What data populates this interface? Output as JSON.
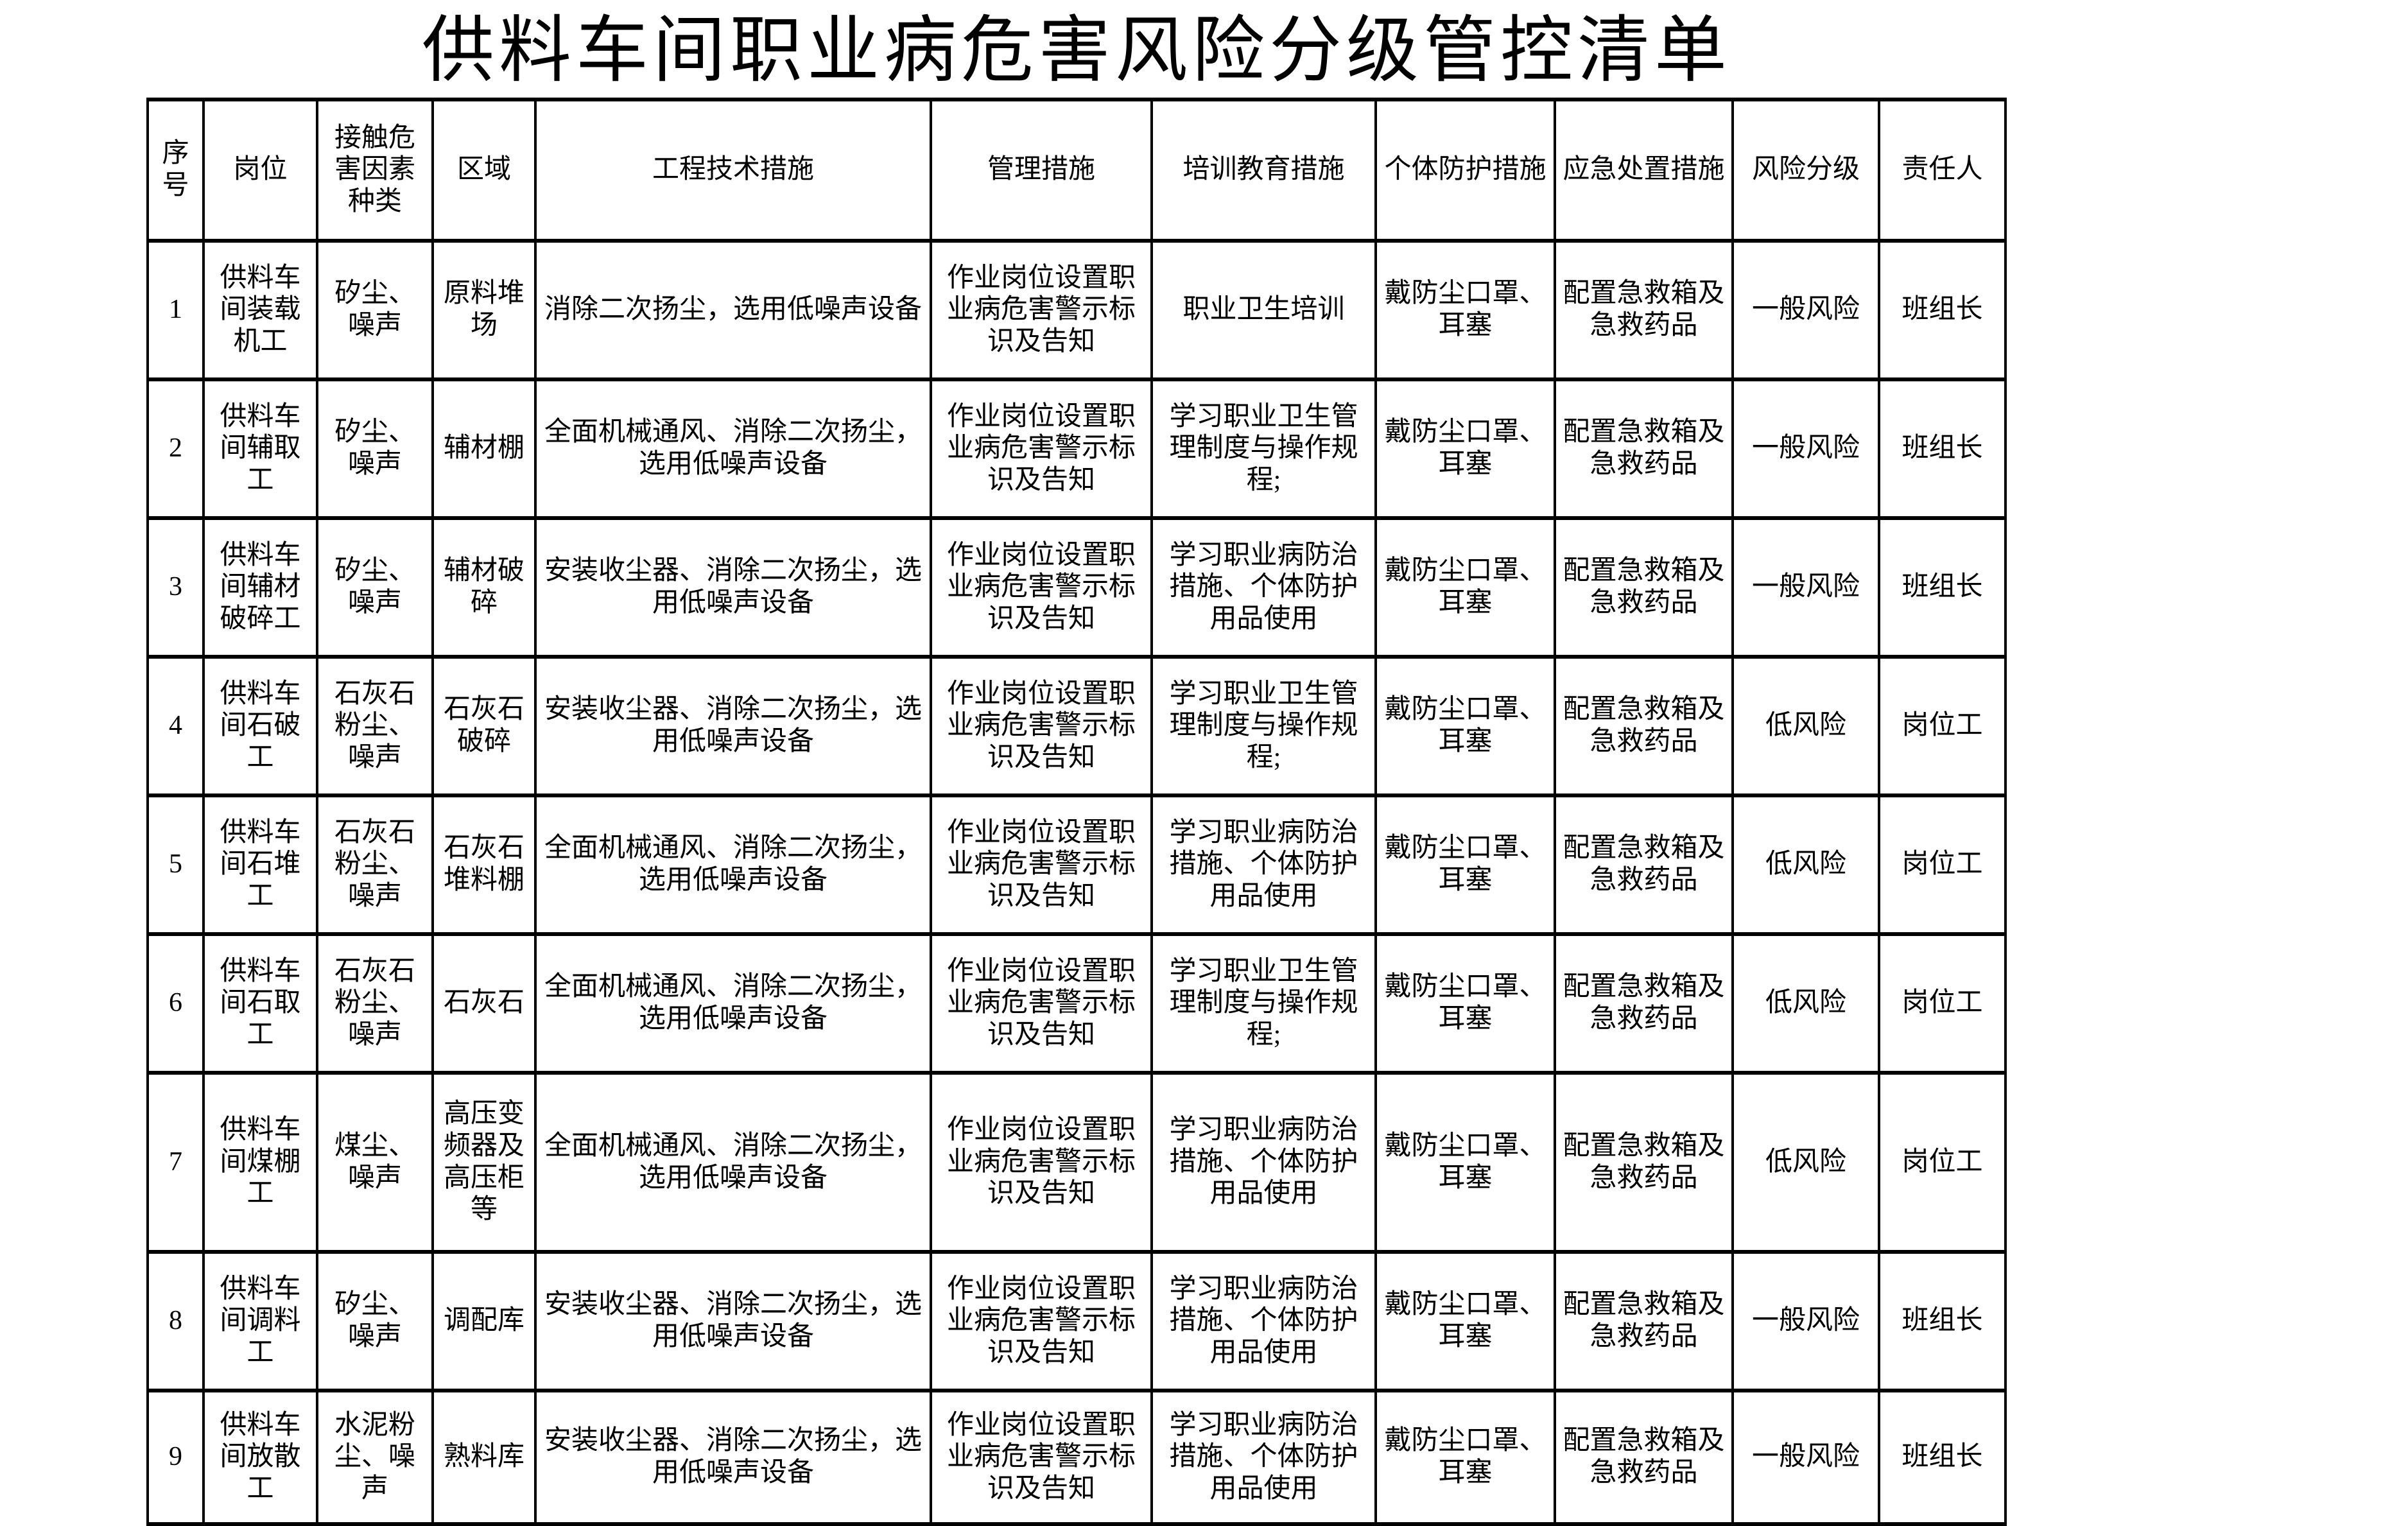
{
  "title": "供料车间职业病危害风险分级管控清单",
  "table": {
    "columns": [
      {
        "key": "no",
        "label": "序号"
      },
      {
        "key": "position",
        "label": "岗位"
      },
      {
        "key": "hazards",
        "label": "接触危害因素种类"
      },
      {
        "key": "area",
        "label": "区域"
      },
      {
        "key": "engineering",
        "label": "工程技术措施"
      },
      {
        "key": "management",
        "label": "管理措施"
      },
      {
        "key": "training",
        "label": "培训教育措施"
      },
      {
        "key": "ppe",
        "label": "个体防护措施"
      },
      {
        "key": "emergency",
        "label": "应急处置措施"
      },
      {
        "key": "risk",
        "label": "风险分级"
      },
      {
        "key": "responsible",
        "label": "责任人"
      }
    ],
    "rows": [
      {
        "no": "1",
        "position": "供料车间装载机工",
        "hazards": "矽尘、噪声",
        "area": "原料堆场",
        "engineering": "消除二次扬尘，选用低噪声设备",
        "management": "作业岗位设置职业病危害警示标识及告知",
        "training": "职业卫生培训",
        "ppe": "戴防尘口罩、耳塞",
        "emergency": "配置急救箱及急救药品",
        "risk": "一般风险",
        "responsible": "班组长"
      },
      {
        "no": "2",
        "position": "供料车间辅取工",
        "hazards": "矽尘、噪声",
        "area": "辅材棚",
        "engineering": "全面机械通风、消除二次扬尘，选用低噪声设备",
        "management": "作业岗位设置职业病危害警示标识及告知",
        "training": "学习职业卫生管理制度与操作规程;",
        "ppe": "戴防尘口罩、耳塞",
        "emergency": "配置急救箱及急救药品",
        "risk": "一般风险",
        "responsible": "班组长"
      },
      {
        "no": "3",
        "position": "供料车间辅材破碎工",
        "hazards": "矽尘、噪声",
        "area": "辅材破碎",
        "engineering": "安装收尘器、消除二次扬尘，选用低噪声设备",
        "management": "作业岗位设置职业病危害警示标识及告知",
        "training": "学习职业病防治措施、个体防护用品使用",
        "ppe": "戴防尘口罩、耳塞",
        "emergency": "配置急救箱及急救药品",
        "risk": "一般风险",
        "responsible": "班组长"
      },
      {
        "no": "4",
        "position": "供料车间石破工",
        "hazards": "石灰石粉尘、噪声",
        "area": "石灰石破碎",
        "engineering": "安装收尘器、消除二次扬尘，选用低噪声设备",
        "management": "作业岗位设置职业病危害警示标识及告知",
        "training": "学习职业卫生管理制度与操作规程;",
        "ppe": "戴防尘口罩、耳塞",
        "emergency": "配置急救箱及急救药品",
        "risk": "低风险",
        "responsible": "岗位工"
      },
      {
        "no": "5",
        "position": "供料车间石堆工",
        "hazards": "石灰石粉尘、噪声",
        "area": "石灰石堆料棚",
        "engineering": "全面机械通风、消除二次扬尘，选用低噪声设备",
        "management": "作业岗位设置职业病危害警示标识及告知",
        "training": "学习职业病防治措施、个体防护用品使用",
        "ppe": "戴防尘口罩、耳塞",
        "emergency": "配置急救箱及急救药品",
        "risk": "低风险",
        "responsible": "岗位工"
      },
      {
        "no": "6",
        "position": "供料车间石取工",
        "hazards": "石灰石粉尘、噪声",
        "area": "石灰石",
        "engineering": "全面机械通风、消除二次扬尘，选用低噪声设备",
        "management": "作业岗位设置职业病危害警示标识及告知",
        "training": "学习职业卫生管理制度与操作规程;",
        "ppe": "戴防尘口罩、耳塞",
        "emergency": "配置急救箱及急救药品",
        "risk": "低风险",
        "responsible": "岗位工"
      },
      {
        "no": "7",
        "position": "供料车间煤棚工",
        "hazards": "煤尘、噪声",
        "area": "高压变频器及高压柜等",
        "engineering": "全面机械通风、消除二次扬尘，选用低噪声设备",
        "management": "作业岗位设置职业病危害警示标识及告知",
        "training": "学习职业病防治措施、个体防护用品使用",
        "ppe": "戴防尘口罩、耳塞",
        "emergency": "配置急救箱及急救药品",
        "risk": "低风险",
        "responsible": "岗位工"
      },
      {
        "no": "8",
        "position": "供料车间调料工",
        "hazards": "矽尘、噪声",
        "area": "调配库",
        "engineering": "安装收尘器、消除二次扬尘，选用低噪声设备",
        "management": "作业岗位设置职业病危害警示标识及告知",
        "training": "学习职业病防治措施、个体防护用品使用",
        "ppe": "戴防尘口罩、耳塞",
        "emergency": "配置急救箱及急救药品",
        "risk": "一般风险",
        "responsible": "班组长"
      },
      {
        "no": "9",
        "position": "供料车间放散工",
        "hazards": "水泥粉尘、噪声",
        "area": "熟料库",
        "engineering": "安装收尘器、消除二次扬尘，选用低噪声设备",
        "management": "作业岗位设置职业病危害警示标识及告知",
        "training": "学习职业病防治措施、个体防护用品使用",
        "ppe": "戴防尘口罩、耳塞",
        "emergency": "配置急救箱及急救药品",
        "risk": "一般风险",
        "responsible": "班组长"
      }
    ]
  }
}
